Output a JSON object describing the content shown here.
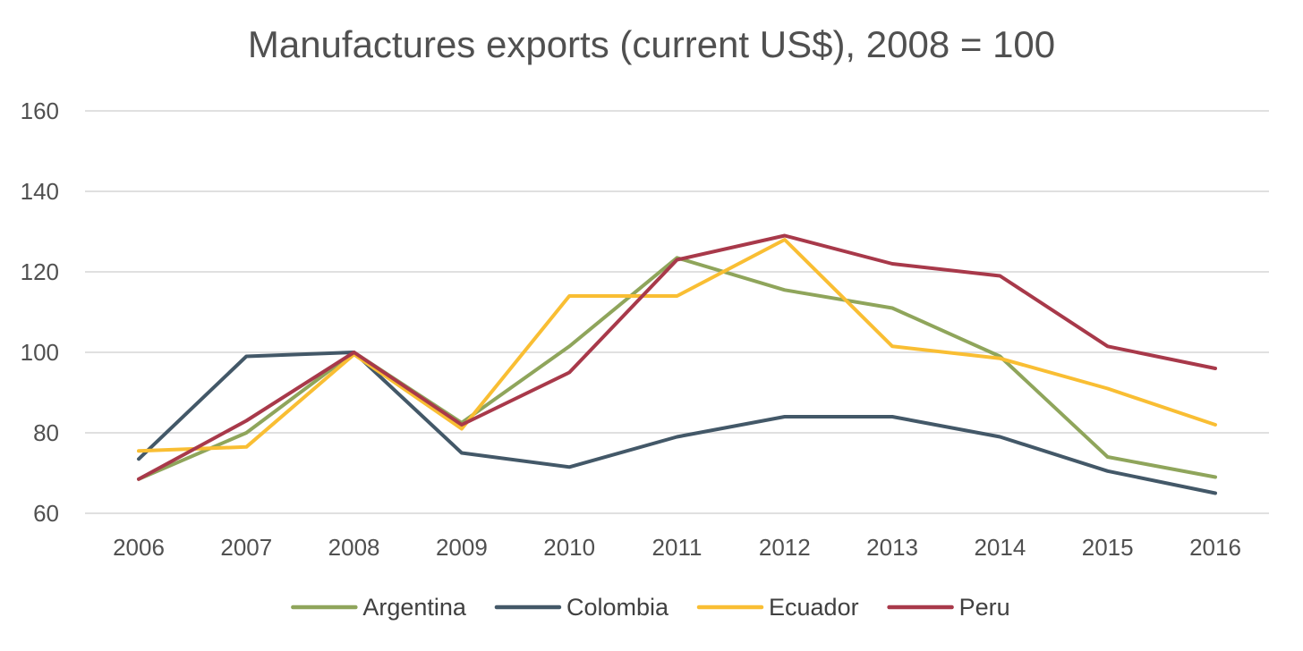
{
  "chart_data": {
    "type": "line",
    "title": "Manufactures exports (current US$), 2008 = 100",
    "xlabel": "",
    "ylabel": "",
    "categories": [
      "2006",
      "2007",
      "2008",
      "2009",
      "2010",
      "2011",
      "2012",
      "2013",
      "2014",
      "2015",
      "2016"
    ],
    "yticks": [
      60,
      80,
      100,
      120,
      140,
      160
    ],
    "ylim": [
      60,
      160
    ],
    "grid": true,
    "legend_position": "bottom",
    "series": [
      {
        "name": "Argentina",
        "color": "#8FA55B",
        "values": [
          68.5,
          80,
          100,
          82.5,
          101.5,
          123.5,
          115.5,
          111,
          99,
          74,
          69
        ]
      },
      {
        "name": "Colombia",
        "color": "#435868",
        "values": [
          73.5,
          99,
          100,
          75,
          71.5,
          79,
          84,
          84,
          79,
          70.5,
          65
        ]
      },
      {
        "name": "Ecuador",
        "color": "#F9BE33",
        "values": [
          75.5,
          76.5,
          99.5,
          81,
          114,
          114,
          128,
          101.5,
          98.5,
          91,
          82
        ]
      },
      {
        "name": "Peru",
        "color": "#A8394A",
        "values": [
          68.5,
          83,
          100,
          82,
          95,
          123,
          129,
          122,
          119,
          101.5,
          96
        ]
      }
    ]
  }
}
